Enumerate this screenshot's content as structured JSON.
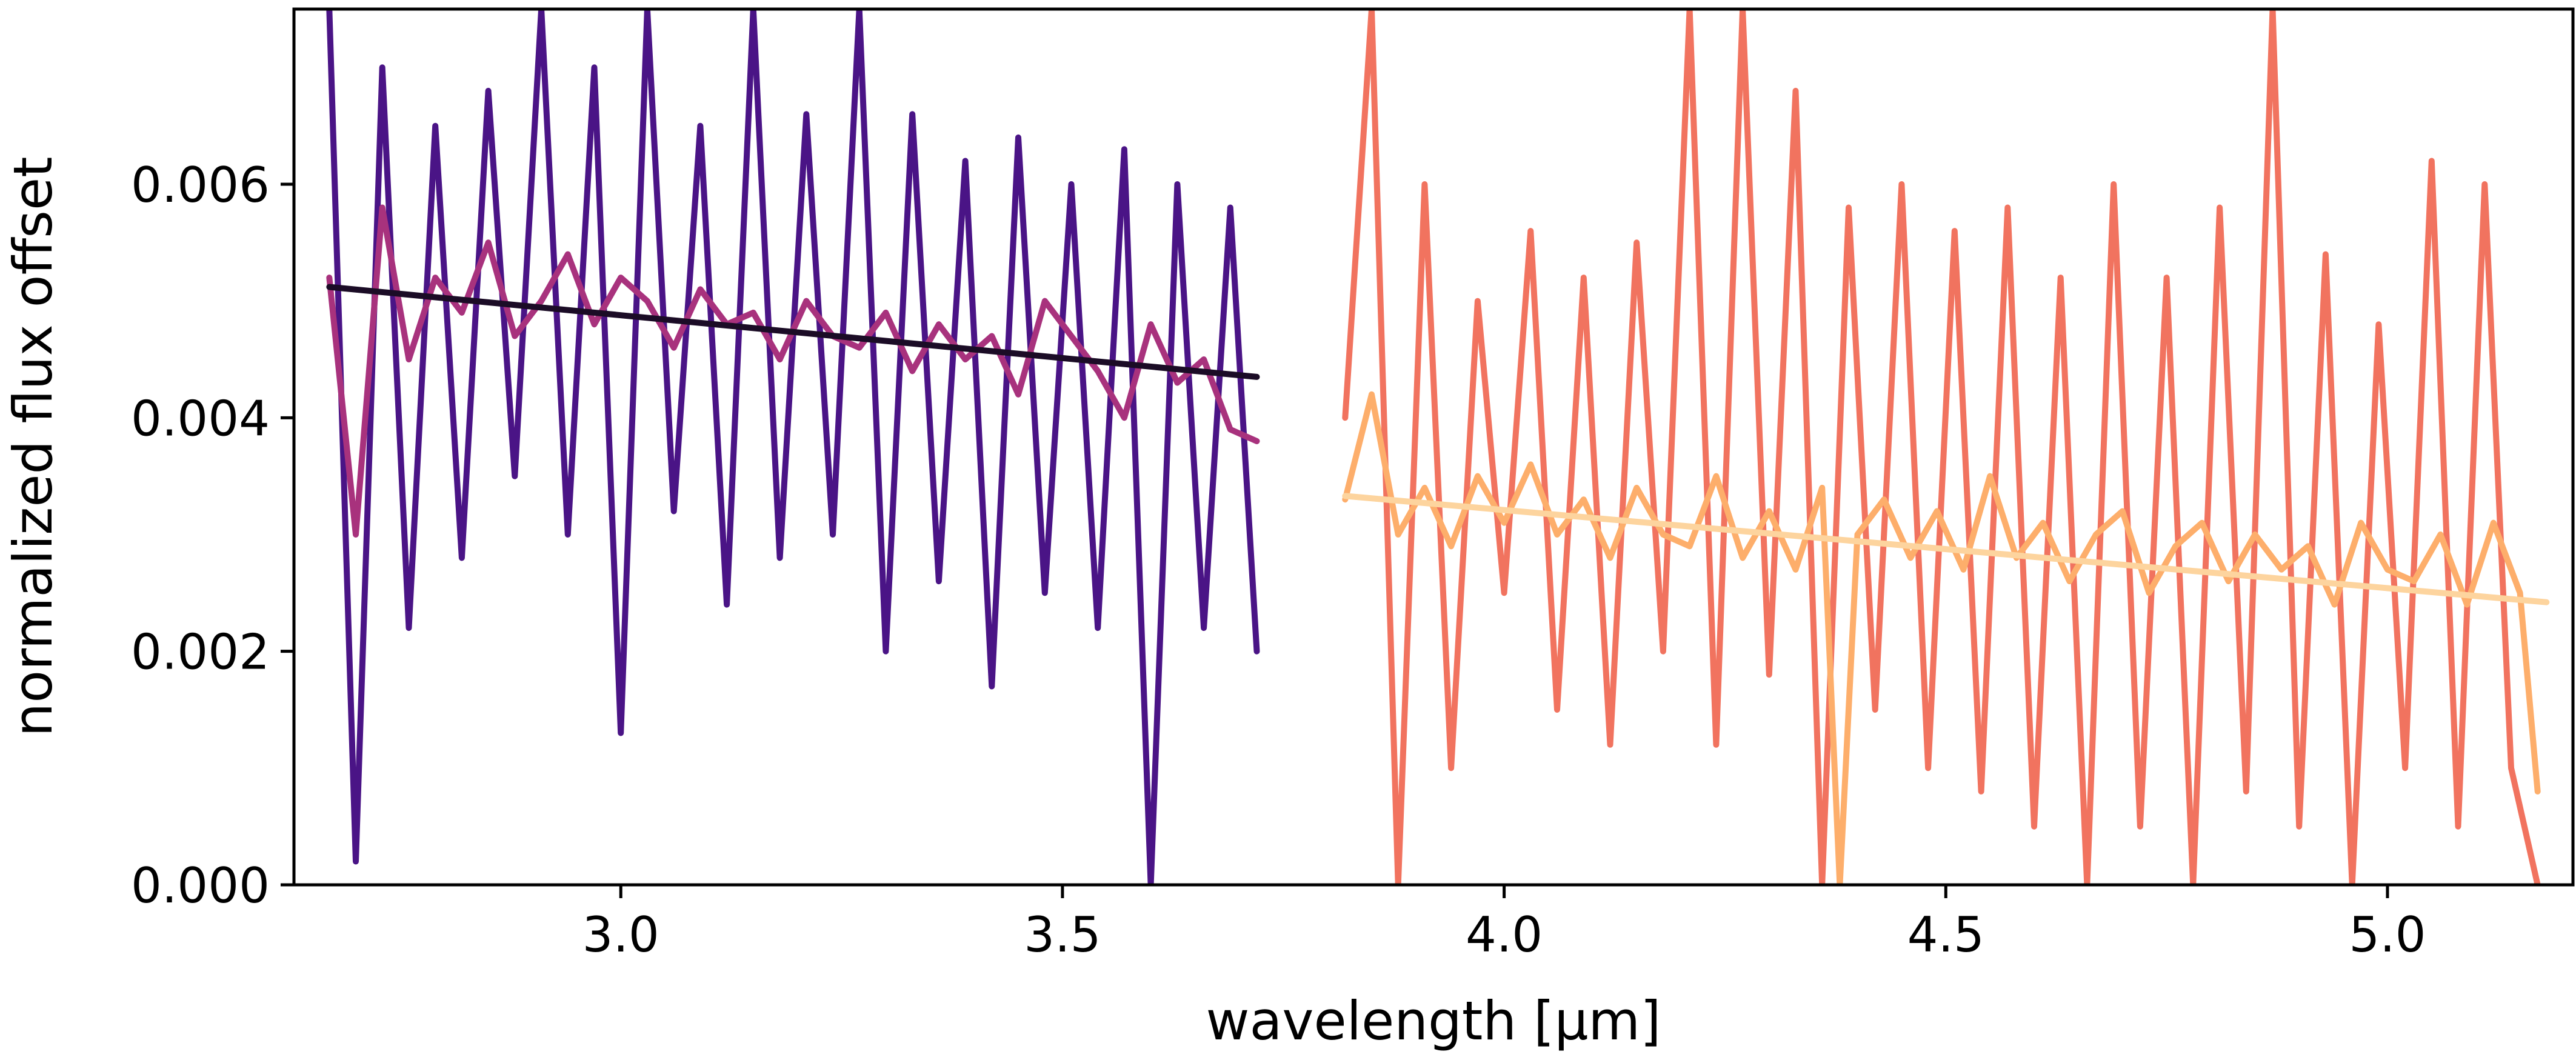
{
  "chart_data": {
    "type": "line",
    "title": "",
    "xlabel": "wavelength [μm]",
    "ylabel": "normalized flux offset",
    "xlim": [
      2.63,
      5.21
    ],
    "ylim": [
      0.0,
      0.0075
    ],
    "xticks": [
      {
        "value": 3.0,
        "label": "3.0"
      },
      {
        "value": 3.5,
        "label": "3.5"
      },
      {
        "value": 4.0,
        "label": "4.0"
      },
      {
        "value": 4.5,
        "label": "4.5"
      },
      {
        "value": 5.0,
        "label": "5.0"
      }
    ],
    "yticks": [
      {
        "value": 0.0,
        "label": "0.000"
      },
      {
        "value": 0.002,
        "label": "0.002"
      },
      {
        "value": 0.004,
        "label": "0.004"
      },
      {
        "value": 0.006,
        "label": "0.006"
      }
    ],
    "grid": false,
    "legend": "none",
    "series": [
      {
        "role": "raw",
        "color": "#4a1486",
        "x": [
          2.67,
          2.7,
          2.73,
          2.76,
          2.79,
          2.82,
          2.85,
          2.88,
          2.91,
          2.94,
          2.97,
          3.0,
          3.03,
          3.06,
          3.09,
          3.12,
          3.15,
          3.18,
          3.21,
          3.24,
          3.27,
          3.3,
          3.33,
          3.36,
          3.39,
          3.42,
          3.45,
          3.48,
          3.51,
          3.54,
          3.57,
          3.6,
          3.63,
          3.66,
          3.69,
          3.72
        ],
        "y": [
          0.0075,
          0.0002,
          0.007,
          0.0022,
          0.0065,
          0.0028,
          0.0068,
          0.0035,
          0.0075,
          0.003,
          0.007,
          0.0013,
          0.0075,
          0.0032,
          0.0065,
          0.0024,
          0.0075,
          0.0028,
          0.0066,
          0.003,
          0.0075,
          0.002,
          0.0066,
          0.0026,
          0.0062,
          0.0017,
          0.0064,
          0.0025,
          0.006,
          0.0022,
          0.0063,
          0.0,
          0.006,
          0.0022,
          0.0058,
          0.002
        ]
      },
      {
        "role": "smoothed",
        "color": "#a8327d",
        "x": [
          2.67,
          2.7,
          2.73,
          2.76,
          2.79,
          2.82,
          2.85,
          2.88,
          2.91,
          2.94,
          2.97,
          3.0,
          3.03,
          3.06,
          3.09,
          3.12,
          3.15,
          3.18,
          3.21,
          3.24,
          3.27,
          3.3,
          3.33,
          3.36,
          3.39,
          3.42,
          3.45,
          3.48,
          3.51,
          3.54,
          3.57,
          3.6,
          3.63,
          3.66,
          3.69,
          3.72
        ],
        "y": [
          0.0052,
          0.003,
          0.0058,
          0.0045,
          0.0052,
          0.0049,
          0.0055,
          0.0047,
          0.005,
          0.0054,
          0.0048,
          0.0052,
          0.005,
          0.0046,
          0.0051,
          0.0048,
          0.0049,
          0.0045,
          0.005,
          0.0047,
          0.0046,
          0.0049,
          0.0044,
          0.0048,
          0.0045,
          0.0047,
          0.0042,
          0.005,
          0.0047,
          0.0044,
          0.004,
          0.0048,
          0.0043,
          0.0045,
          0.0039,
          0.0038
        ]
      },
      {
        "role": "fit",
        "color": "#1b0c26",
        "x": [
          2.67,
          3.72
        ],
        "y": [
          0.00512,
          0.00435
        ]
      },
      {
        "role": "raw",
        "color": "#f1735f",
        "x": [
          3.82,
          3.85,
          3.88,
          3.91,
          3.94,
          3.97,
          4.0,
          4.03,
          4.06,
          4.09,
          4.12,
          4.15,
          4.18,
          4.21,
          4.24,
          4.27,
          4.3,
          4.33,
          4.36,
          4.39,
          4.42,
          4.45,
          4.48,
          4.51,
          4.54,
          4.57,
          4.6,
          4.63,
          4.66,
          4.69,
          4.72,
          4.75,
          4.78,
          4.81,
          4.84,
          4.87,
          4.9,
          4.93,
          4.96,
          4.99,
          5.02,
          5.05,
          5.08,
          5.11,
          5.14,
          5.17
        ],
        "y": [
          0.004,
          0.0075,
          0.0,
          0.006,
          0.001,
          0.005,
          0.0025,
          0.0056,
          0.0015,
          0.0052,
          0.0012,
          0.0055,
          0.002,
          0.0075,
          0.0012,
          0.0075,
          0.0018,
          0.0068,
          0.0,
          0.0058,
          0.0015,
          0.006,
          0.001,
          0.0056,
          0.0008,
          0.0058,
          0.0005,
          0.0052,
          0.0,
          0.006,
          0.0005,
          0.0052,
          0.0,
          0.0058,
          0.0008,
          0.0075,
          0.0005,
          0.0054,
          0.0,
          0.0048,
          0.001,
          0.0062,
          0.0005,
          0.006,
          0.001,
          0.0
        ]
      },
      {
        "role": "smoothed",
        "color": "#fdae6b",
        "x": [
          3.82,
          3.85,
          3.88,
          3.91,
          3.94,
          3.97,
          4.0,
          4.03,
          4.06,
          4.09,
          4.12,
          4.15,
          4.18,
          4.21,
          4.24,
          4.27,
          4.3,
          4.33,
          4.36,
          4.38,
          4.4,
          4.43,
          4.46,
          4.49,
          4.52,
          4.55,
          4.58,
          4.61,
          4.64,
          4.67,
          4.7,
          4.73,
          4.76,
          4.79,
          4.82,
          4.85,
          4.88,
          4.91,
          4.94,
          4.97,
          5.0,
          5.03,
          5.06,
          5.09,
          5.12,
          5.15,
          5.17
        ],
        "y": [
          0.0033,
          0.0042,
          0.003,
          0.0034,
          0.0029,
          0.0035,
          0.0031,
          0.0036,
          0.003,
          0.0033,
          0.0028,
          0.0034,
          0.003,
          0.0029,
          0.0035,
          0.0028,
          0.0032,
          0.0027,
          0.0034,
          0.0,
          0.003,
          0.0033,
          0.0028,
          0.0032,
          0.0027,
          0.0035,
          0.0028,
          0.0031,
          0.0026,
          0.003,
          0.0032,
          0.0025,
          0.0029,
          0.0031,
          0.0026,
          0.003,
          0.0027,
          0.0029,
          0.0024,
          0.0031,
          0.0027,
          0.0026,
          0.003,
          0.0024,
          0.0031,
          0.0025,
          0.0008
        ]
      },
      {
        "role": "fit",
        "color": "#fdd49e",
        "x": [
          3.82,
          5.18
        ],
        "y": [
          0.00333,
          0.00242
        ]
      }
    ]
  }
}
